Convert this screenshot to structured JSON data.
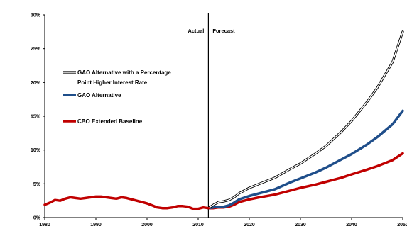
{
  "chart_data": {
    "type": "line",
    "title": "",
    "xlabel": "",
    "ylabel": "",
    "xlim": [
      1980,
      2050
    ],
    "ylim": [
      0,
      30
    ],
    "grid": false,
    "x_ticks": [
      "1980",
      "1990",
      "2000",
      "2010",
      "2020",
      "2030",
      "2040",
      "2050"
    ],
    "y_ticks": [
      "0%",
      "5%",
      "10%",
      "15%",
      "20%",
      "25%",
      "30%"
    ],
    "annotations": {
      "divider_year": 2012,
      "actual_label": "Actual",
      "forecast_label": "Forecast"
    },
    "historical": {
      "x": [
        1980,
        1981,
        1982,
        1983,
        1984,
        1985,
        1986,
        1987,
        1988,
        1989,
        1990,
        1991,
        1992,
        1993,
        1994,
        1995,
        1996,
        1997,
        1998,
        1999,
        2000,
        2001,
        2002,
        2003,
        2004,
        2005,
        2006,
        2007,
        2008,
        2009,
        2010,
        2011,
        2012
      ],
      "values": [
        1.9,
        2.2,
        2.6,
        2.5,
        2.8,
        3.0,
        2.9,
        2.8,
        2.9,
        3.0,
        3.1,
        3.1,
        3.0,
        2.9,
        2.8,
        3.0,
        2.9,
        2.7,
        2.5,
        2.3,
        2.1,
        1.8,
        1.5,
        1.4,
        1.4,
        1.5,
        1.7,
        1.7,
        1.6,
        1.3,
        1.3,
        1.5,
        1.4
      ]
    },
    "series": [
      {
        "name": "GAO Alternative with a Percentage Point Higher Interest Rate",
        "color": "#ffffff",
        "outline": "#000000",
        "x": [
          2012,
          2013,
          2014,
          2015,
          2016,
          2017,
          2018,
          2020,
          2022,
          2025,
          2028,
          2030,
          2033,
          2035,
          2038,
          2040,
          2043,
          2045,
          2048,
          2050
        ],
        "values": [
          1.4,
          1.9,
          2.3,
          2.4,
          2.6,
          3.0,
          3.6,
          4.4,
          5.0,
          5.9,
          7.2,
          8.0,
          9.5,
          10.6,
          12.7,
          14.3,
          17.1,
          19.2,
          23.0,
          27.5
        ]
      },
      {
        "name": "GAO Alternative",
        "color": "#1f4e8a",
        "x": [
          2012,
          2013,
          2014,
          2015,
          2016,
          2017,
          2018,
          2020,
          2022,
          2025,
          2028,
          2030,
          2033,
          2035,
          2038,
          2040,
          2043,
          2045,
          2048,
          2050
        ],
        "values": [
          1.4,
          1.5,
          1.6,
          1.6,
          1.8,
          2.2,
          2.7,
          3.2,
          3.6,
          4.2,
          5.2,
          5.8,
          6.7,
          7.4,
          8.6,
          9.4,
          10.8,
          11.9,
          13.8,
          15.8
        ]
      },
      {
        "name": "CBO Extended Baseline",
        "color": "#c00000",
        "x": [
          2012,
          2013,
          2014,
          2015,
          2016,
          2017,
          2018,
          2020,
          2022,
          2025,
          2028,
          2030,
          2033,
          2035,
          2038,
          2040,
          2043,
          2045,
          2048,
          2050
        ],
        "values": [
          1.4,
          1.4,
          1.5,
          1.5,
          1.6,
          1.9,
          2.3,
          2.7,
          3.0,
          3.4,
          4.0,
          4.4,
          4.9,
          5.3,
          5.9,
          6.4,
          7.1,
          7.6,
          8.5,
          9.5
        ]
      }
    ]
  }
}
